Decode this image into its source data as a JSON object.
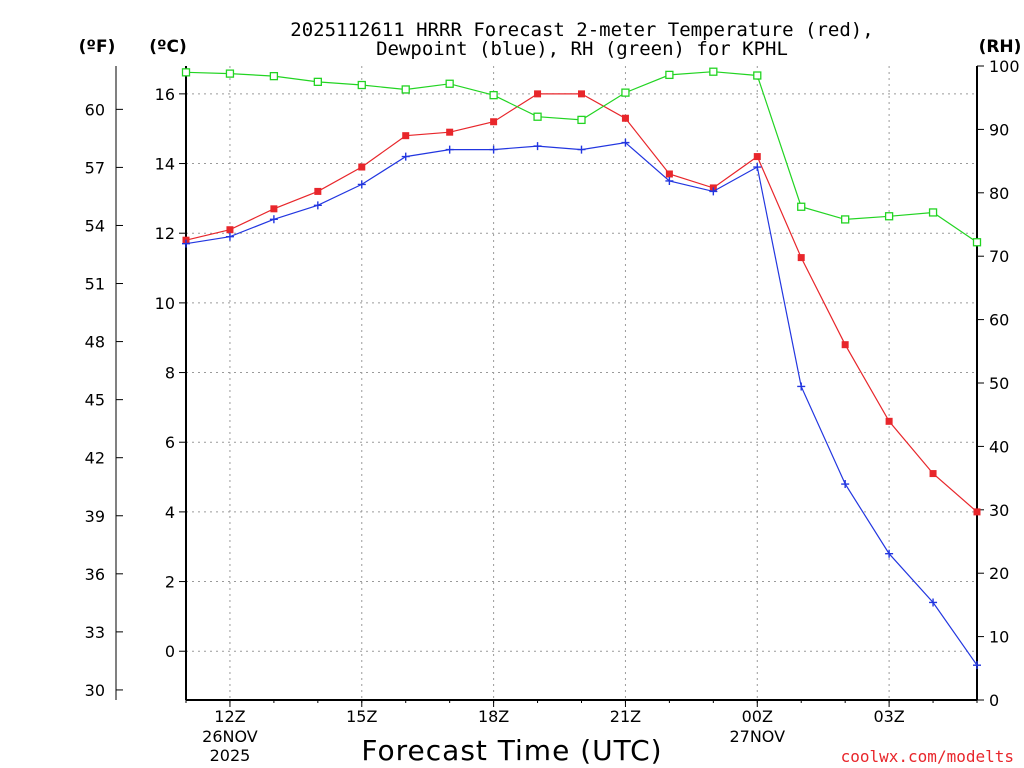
{
  "chart_data": {
    "type": "line",
    "title_line1": "2025112611 HRRR Forecast 2-meter Temperature (red),",
    "title_line2": "Dewpoint (blue), RH (green) for KPHL",
    "xlabel": "Forecast Time (UTC)",
    "credit": "coolwx.com/modelts",
    "unit_f": "(ºF)",
    "unit_c": "(ºC)",
    "unit_rh": "(RH)",
    "x_hours": [
      11,
      12,
      13,
      14,
      15,
      16,
      17,
      18,
      19,
      20,
      21,
      22,
      23,
      24,
      25,
      26,
      27,
      28,
      29
    ],
    "x_ticks": [
      {
        "hour": 12,
        "label": "12Z",
        "sub1": "26NOV",
        "sub2": "2025"
      },
      {
        "hour": 15,
        "label": "15Z",
        "sub1": "",
        "sub2": ""
      },
      {
        "hour": 18,
        "label": "18Z",
        "sub1": "",
        "sub2": ""
      },
      {
        "hour": 21,
        "label": "21Z",
        "sub1": "",
        "sub2": ""
      },
      {
        "hour": 24,
        "label": "00Z",
        "sub1": "27NOV",
        "sub2": ""
      },
      {
        "hour": 27,
        "label": "03Z",
        "sub1": "",
        "sub2": ""
      }
    ],
    "c_range": [
      -1.4,
      16.8
    ],
    "c_ticks": [
      0,
      2,
      4,
      6,
      8,
      10,
      12,
      14,
      16
    ],
    "f_ticks": [
      30,
      33,
      36,
      39,
      42,
      45,
      48,
      51,
      54,
      57,
      60
    ],
    "rh_range": [
      0,
      100
    ],
    "rh_ticks": [
      0,
      10,
      20,
      30,
      40,
      50,
      60,
      70,
      80,
      90,
      100
    ],
    "series": [
      {
        "name": "Temperature",
        "axis": "c",
        "color": "#e8262b",
        "marker": "filled-square",
        "values": [
          11.8,
          12.1,
          12.7,
          13.2,
          13.9,
          14.8,
          14.9,
          15.2,
          16.0,
          16.0,
          15.3,
          13.7,
          13.3,
          14.2,
          11.3,
          8.8,
          6.6,
          5.1,
          4.0
        ]
      },
      {
        "name": "Dewpoint",
        "axis": "c",
        "color": "#2236e0",
        "marker": "plus",
        "values": [
          11.7,
          11.9,
          12.4,
          12.8,
          13.4,
          14.2,
          14.4,
          14.4,
          14.5,
          14.4,
          14.6,
          13.5,
          13.2,
          13.9,
          7.6,
          4.8,
          2.8,
          1.4,
          -0.4
        ]
      },
      {
        "name": "RH",
        "axis": "rh",
        "color": "#22d422",
        "marker": "open-square",
        "values": [
          99.0,
          98.8,
          98.4,
          97.5,
          97.0,
          96.3,
          97.2,
          95.4,
          92.0,
          91.5,
          95.8,
          98.6,
          99.1,
          98.5,
          77.8,
          75.8,
          76.3,
          76.9,
          72.2
        ]
      }
    ]
  }
}
